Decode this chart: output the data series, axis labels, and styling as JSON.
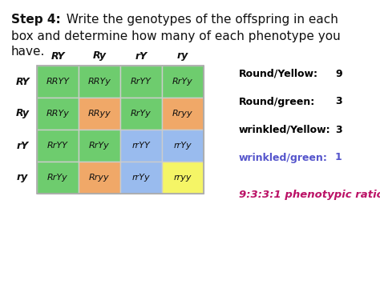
{
  "col_headers": [
    "RY",
    "Ry",
    "rY",
    "ry"
  ],
  "row_headers": [
    "RY",
    "Ry",
    "rY",
    "ry"
  ],
  "cells": [
    [
      "RRYY",
      "RRYy",
      "RrYY",
      "RrYy"
    ],
    [
      "RRYy",
      "RRyy",
      "RrYy",
      "Rryy"
    ],
    [
      "RrYY",
      "RrYy",
      "rrYY",
      "rrYy"
    ],
    [
      "RrYy",
      "Rryy",
      "rrYy",
      "rryy"
    ]
  ],
  "cell_colors": [
    [
      "#6ecc6e",
      "#6ecc6e",
      "#6ecc6e",
      "#6ecc6e"
    ],
    [
      "#6ecc6e",
      "#f0a868",
      "#6ecc6e",
      "#f0a868"
    ],
    [
      "#6ecc6e",
      "#6ecc6e",
      "#99bbee",
      "#99bbee"
    ],
    [
      "#6ecc6e",
      "#f0a868",
      "#99bbee",
      "#f5f566"
    ]
  ],
  "legend_items": [
    {
      "label": "Round/Yellow:",
      "value": "9",
      "color": "#000000"
    },
    {
      "label": "Round/green:",
      "value": "3",
      "color": "#000000"
    },
    {
      "label": "wrinkled/Yellow:",
      "value": "3",
      "color": "#000000"
    },
    {
      "label": "wrinkled/green:",
      "value": "1",
      "color": "#5555cc"
    }
  ],
  "ratio_text": "9:3:3:1 phenotypic ratio",
  "ratio_color": "#bb1166",
  "bg_color": "#ffffff"
}
